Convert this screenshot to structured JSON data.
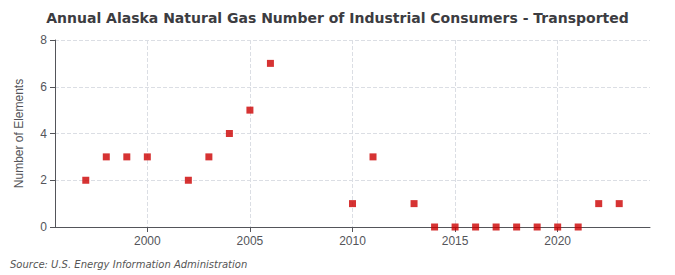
{
  "chart_data": {
    "type": "scatter",
    "title": "Annual Alaska Natural Gas Number of Industrial Consumers - Transported",
    "ylabel": "Number of Elements",
    "source": "Source: U.S. Energy Information Administration",
    "x": [
      1997,
      1998,
      1999,
      2000,
      2002,
      2003,
      2004,
      2005,
      2006,
      2010,
      2011,
      2013,
      2014,
      2015,
      2016,
      2017,
      2018,
      2019,
      2020,
      2021,
      2022,
      2023
    ],
    "values": [
      2,
      3,
      3,
      3,
      2,
      3,
      4,
      5,
      7,
      1,
      3,
      1,
      0,
      0,
      0,
      0,
      0,
      0,
      0,
      0,
      1,
      1
    ],
    "color": "#cc0000",
    "marker": "square",
    "xlim": [
      1995.5,
      2024.5
    ],
    "xticks": [
      2000,
      2005,
      2010,
      2015,
      2020
    ],
    "ylim": [
      0,
      8
    ],
    "yticks": [
      0,
      2,
      4,
      6,
      8
    ],
    "grid": true
  }
}
